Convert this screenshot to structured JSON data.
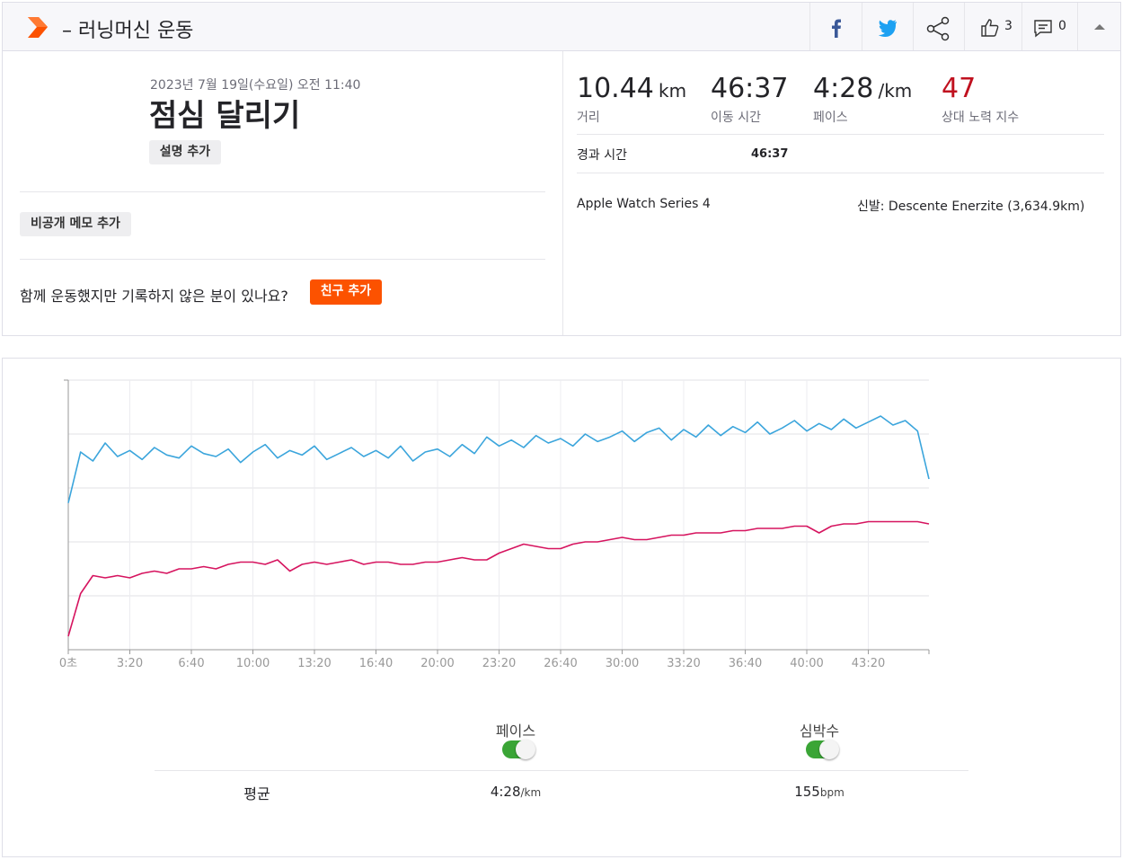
{
  "header": {
    "title": "– 러닝머신 운동",
    "likes": "3",
    "comments": "0"
  },
  "activity": {
    "datetime": "2023년 7월 19일(수요일) 오전 11:40",
    "name": "점심 달리기",
    "add_description": "설명 추가",
    "private_note": "비공개 메모 추가",
    "friends_question": "함께 운동했지만 기록하지 않은 분이 있나요?",
    "add_friends": "친구 추가"
  },
  "stats": [
    {
      "value": "10.44",
      "unit": "km",
      "label": "거리"
    },
    {
      "value": "46:37",
      "label": "이동 시간"
    },
    {
      "value": "4:28",
      "unit": "/km",
      "label": "페이스"
    },
    {
      "value": "47",
      "label": "상대 노력 지수"
    }
  ],
  "elapsed": {
    "label": "경과 시간",
    "value": "46:37"
  },
  "device": "Apple Watch Series 4",
  "shoes": "신발: Descente Enerzite (3,634.9km)",
  "chart_data": {
    "type": "line",
    "x": [
      0,
      40,
      80,
      120,
      160,
      200,
      240,
      280,
      320,
      360,
      400,
      440,
      480,
      520,
      560,
      600,
      640,
      680,
      720,
      760,
      800,
      840,
      880,
      920,
      960,
      1000,
      1040,
      1080,
      1120,
      1160,
      1200,
      1240,
      1280,
      1320,
      1360,
      1400,
      1440,
      1480,
      1520,
      1560,
      1600,
      1640,
      1680,
      1720,
      1760,
      1800,
      1840,
      1880,
      1920,
      1960,
      2000,
      2040,
      2080,
      2120,
      2160,
      2200,
      2240,
      2280,
      2320,
      2360,
      2400,
      2440,
      2480,
      2520,
      2560,
      2600,
      2640,
      2680,
      2720,
      2760,
      2797
    ],
    "xlim": [
      0,
      2797
    ],
    "xticks": [
      {
        "value": 0,
        "label": "0초"
      },
      {
        "value": 200,
        "label": "3:20"
      },
      {
        "value": 400,
        "label": "6:40"
      },
      {
        "value": 600,
        "label": "10:00"
      },
      {
        "value": 800,
        "label": "13:20"
      },
      {
        "value": 1000,
        "label": "16:40"
      },
      {
        "value": 1200,
        "label": "20:00"
      },
      {
        "value": 1400,
        "label": "23:20"
      },
      {
        "value": 1600,
        "label": "26:40"
      },
      {
        "value": 1800,
        "label": "30:00"
      },
      {
        "value": 2000,
        "label": "33:20"
      },
      {
        "value": 2200,
        "label": "36:40"
      },
      {
        "value": 2400,
        "label": "40:00"
      },
      {
        "value": 2600,
        "label": "43:20"
      }
    ],
    "ylim": [
      0,
      18
    ],
    "yticks": [
      0,
      3.6,
      7.2,
      10.8,
      14.4,
      18
    ],
    "y2lim": [
      110,
      230
    ],
    "grid": true,
    "series": [
      {
        "name": "페이스",
        "color": "#3ba5dc",
        "values": [
          9.8,
          13.2,
          12.6,
          13.8,
          12.9,
          13.3,
          12.7,
          13.5,
          13.0,
          12.8,
          13.6,
          13.1,
          12.9,
          13.4,
          12.5,
          13.2,
          13.7,
          12.8,
          13.3,
          13.0,
          13.6,
          12.7,
          13.1,
          13.5,
          12.9,
          13.3,
          12.8,
          13.6,
          12.6,
          13.2,
          13.4,
          12.9,
          13.7,
          13.1,
          14.2,
          13.6,
          14.0,
          13.5,
          14.3,
          13.8,
          14.1,
          13.6,
          14.4,
          13.9,
          14.2,
          14.6,
          13.9,
          14.5,
          14.8,
          14.0,
          14.7,
          14.2,
          15.0,
          14.3,
          14.9,
          14.5,
          15.2,
          14.4,
          14.8,
          15.3,
          14.6,
          15.1,
          14.7,
          15.4,
          14.8,
          15.2,
          15.6,
          15.0,
          15.3,
          14.6,
          11.4
        ]
      },
      {
        "name": "심박수",
        "color": "#d6145f",
        "axis": "y2",
        "values": [
          116,
          135,
          143,
          142,
          143,
          142,
          144,
          145,
          144,
          146,
          146,
          147,
          146,
          148,
          149,
          149,
          148,
          150,
          145,
          148,
          149,
          148,
          149,
          150,
          148,
          149,
          149,
          148,
          148,
          149,
          149,
          150,
          151,
          150,
          150,
          153,
          155,
          157,
          156,
          155,
          155,
          157,
          158,
          158,
          159,
          160,
          159,
          159,
          160,
          161,
          161,
          162,
          162,
          162,
          163,
          163,
          164,
          164,
          164,
          165,
          165,
          162,
          165,
          166,
          166,
          167,
          167,
          167,
          167,
          167,
          166
        ]
      }
    ]
  },
  "summary": {
    "label": "평균",
    "averages": [
      {
        "value": "4:28",
        "unit": "/km"
      },
      {
        "value": "155",
        "unit": "bpm"
      }
    ]
  }
}
